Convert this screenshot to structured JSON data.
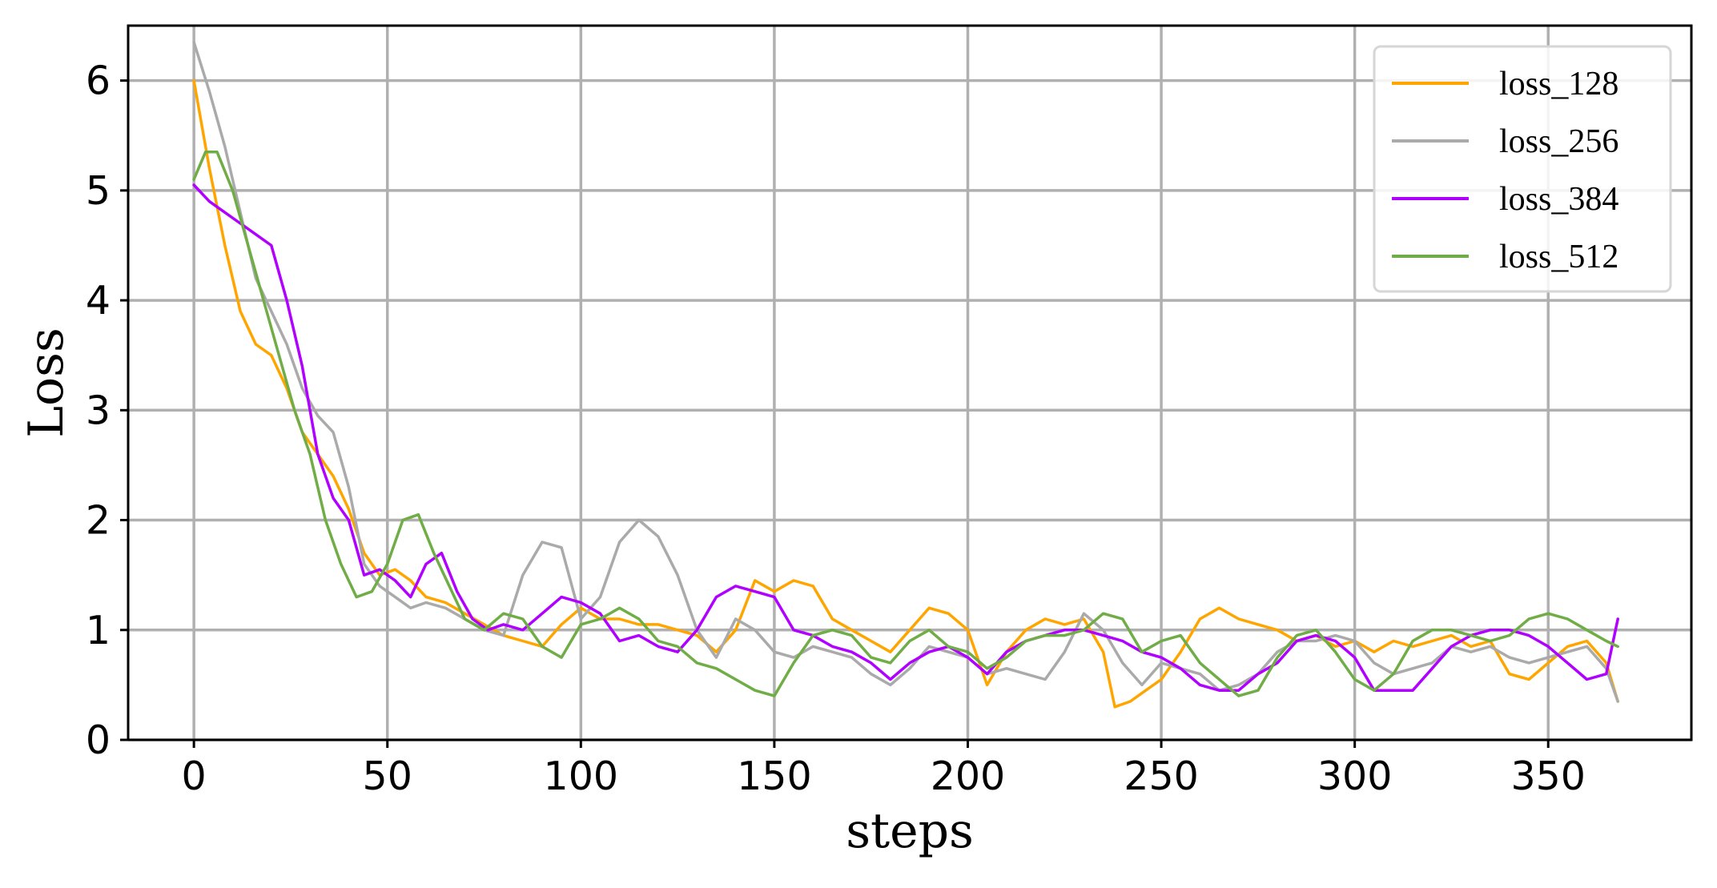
{
  "chart_data": {
    "type": "line",
    "title": "",
    "xlabel": "steps",
    "ylabel": "Loss",
    "xlim": [
      -17,
      387
    ],
    "ylim": [
      0,
      6.5
    ],
    "xticks": [
      0,
      50,
      100,
      150,
      200,
      250,
      300,
      350
    ],
    "yticks": [
      0,
      1,
      2,
      3,
      4,
      5,
      6
    ],
    "grid": true,
    "legend_position": "top-right",
    "series": [
      {
        "name": "loss_128",
        "color": "#FFA500",
        "points": [
          [
            0,
            6.0
          ],
          [
            4,
            5.2
          ],
          [
            8,
            4.5
          ],
          [
            12,
            3.9
          ],
          [
            16,
            3.6
          ],
          [
            20,
            3.5
          ],
          [
            24,
            3.2
          ],
          [
            28,
            2.8
          ],
          [
            32,
            2.6
          ],
          [
            36,
            2.4
          ],
          [
            40,
            2.1
          ],
          [
            44,
            1.7
          ],
          [
            48,
            1.5
          ],
          [
            52,
            1.55
          ],
          [
            56,
            1.45
          ],
          [
            60,
            1.3
          ],
          [
            65,
            1.25
          ],
          [
            70,
            1.15
          ],
          [
            75,
            1.05
          ],
          [
            80,
            0.95
          ],
          [
            85,
            0.9
          ],
          [
            90,
            0.85
          ],
          [
            95,
            1.05
          ],
          [
            100,
            1.2
          ],
          [
            105,
            1.1
          ],
          [
            110,
            1.1
          ],
          [
            115,
            1.05
          ],
          [
            120,
            1.05
          ],
          [
            125,
            1.0
          ],
          [
            130,
            0.95
          ],
          [
            135,
            0.8
          ],
          [
            140,
            1.0
          ],
          [
            145,
            1.45
          ],
          [
            150,
            1.35
          ],
          [
            155,
            1.45
          ],
          [
            160,
            1.4
          ],
          [
            165,
            1.1
          ],
          [
            170,
            1.0
          ],
          [
            175,
            0.9
          ],
          [
            180,
            0.8
          ],
          [
            185,
            1.0
          ],
          [
            190,
            1.2
          ],
          [
            195,
            1.15
          ],
          [
            200,
            1.0
          ],
          [
            205,
            0.5
          ],
          [
            210,
            0.8
          ],
          [
            215,
            1.0
          ],
          [
            220,
            1.1
          ],
          [
            225,
            1.05
          ],
          [
            230,
            1.1
          ],
          [
            235,
            0.8
          ],
          [
            238,
            0.3
          ],
          [
            242,
            0.35
          ],
          [
            246,
            0.45
          ],
          [
            250,
            0.55
          ],
          [
            255,
            0.8
          ],
          [
            260,
            1.1
          ],
          [
            265,
            1.2
          ],
          [
            270,
            1.1
          ],
          [
            275,
            1.05
          ],
          [
            280,
            1.0
          ],
          [
            285,
            0.9
          ],
          [
            290,
            0.95
          ],
          [
            295,
            0.85
          ],
          [
            300,
            0.9
          ],
          [
            305,
            0.8
          ],
          [
            310,
            0.9
          ],
          [
            315,
            0.85
          ],
          [
            320,
            0.9
          ],
          [
            325,
            0.95
          ],
          [
            330,
            0.85
          ],
          [
            335,
            0.9
          ],
          [
            340,
            0.6
          ],
          [
            345,
            0.55
          ],
          [
            350,
            0.7
          ],
          [
            355,
            0.85
          ],
          [
            360,
            0.9
          ],
          [
            365,
            0.7
          ],
          [
            368,
            0.35
          ]
        ]
      },
      {
        "name": "loss_256",
        "color": "#AAAAAA",
        "points": [
          [
            0,
            6.35
          ],
          [
            4,
            5.9
          ],
          [
            8,
            5.4
          ],
          [
            12,
            4.8
          ],
          [
            16,
            4.2
          ],
          [
            20,
            3.9
          ],
          [
            24,
            3.6
          ],
          [
            28,
            3.2
          ],
          [
            32,
            2.95
          ],
          [
            36,
            2.8
          ],
          [
            40,
            2.3
          ],
          [
            44,
            1.6
          ],
          [
            48,
            1.4
          ],
          [
            52,
            1.3
          ],
          [
            56,
            1.2
          ],
          [
            60,
            1.25
          ],
          [
            65,
            1.2
          ],
          [
            70,
            1.1
          ],
          [
            75,
            1.0
          ],
          [
            80,
            0.95
          ],
          [
            85,
            1.5
          ],
          [
            90,
            1.8
          ],
          [
            95,
            1.75
          ],
          [
            100,
            1.1
          ],
          [
            105,
            1.3
          ],
          [
            110,
            1.8
          ],
          [
            115,
            2.0
          ],
          [
            120,
            1.85
          ],
          [
            125,
            1.5
          ],
          [
            130,
            1.0
          ],
          [
            135,
            0.75
          ],
          [
            140,
            1.1
          ],
          [
            145,
            1.0
          ],
          [
            150,
            0.8
          ],
          [
            155,
            0.75
          ],
          [
            160,
            0.85
          ],
          [
            165,
            0.8
          ],
          [
            170,
            0.75
          ],
          [
            175,
            0.6
          ],
          [
            180,
            0.5
          ],
          [
            185,
            0.65
          ],
          [
            190,
            0.85
          ],
          [
            195,
            0.8
          ],
          [
            200,
            0.75
          ],
          [
            205,
            0.6
          ],
          [
            210,
            0.65
          ],
          [
            215,
            0.6
          ],
          [
            220,
            0.55
          ],
          [
            225,
            0.8
          ],
          [
            230,
            1.15
          ],
          [
            235,
            1.0
          ],
          [
            240,
            0.7
          ],
          [
            245,
            0.5
          ],
          [
            250,
            0.7
          ],
          [
            255,
            0.65
          ],
          [
            260,
            0.6
          ],
          [
            265,
            0.45
          ],
          [
            270,
            0.5
          ],
          [
            275,
            0.6
          ],
          [
            280,
            0.8
          ],
          [
            285,
            0.9
          ],
          [
            290,
            0.9
          ],
          [
            295,
            0.95
          ],
          [
            300,
            0.9
          ],
          [
            305,
            0.7
          ],
          [
            310,
            0.6
          ],
          [
            315,
            0.65
          ],
          [
            320,
            0.7
          ],
          [
            325,
            0.85
          ],
          [
            330,
            0.8
          ],
          [
            335,
            0.85
          ],
          [
            340,
            0.75
          ],
          [
            345,
            0.7
          ],
          [
            350,
            0.75
          ],
          [
            355,
            0.8
          ],
          [
            360,
            0.85
          ],
          [
            365,
            0.65
          ],
          [
            368,
            0.35
          ]
        ]
      },
      {
        "name": "loss_384",
        "color": "#B000FF",
        "points": [
          [
            0,
            5.05
          ],
          [
            4,
            4.9
          ],
          [
            8,
            4.8
          ],
          [
            12,
            4.7
          ],
          [
            16,
            4.6
          ],
          [
            20,
            4.5
          ],
          [
            24,
            4.0
          ],
          [
            28,
            3.4
          ],
          [
            32,
            2.6
          ],
          [
            36,
            2.2
          ],
          [
            40,
            2.0
          ],
          [
            44,
            1.5
          ],
          [
            48,
            1.55
          ],
          [
            52,
            1.45
          ],
          [
            56,
            1.3
          ],
          [
            60,
            1.6
          ],
          [
            64,
            1.7
          ],
          [
            68,
            1.35
          ],
          [
            72,
            1.1
          ],
          [
            76,
            1.0
          ],
          [
            80,
            1.05
          ],
          [
            85,
            1.0
          ],
          [
            90,
            1.15
          ],
          [
            95,
            1.3
          ],
          [
            100,
            1.25
          ],
          [
            105,
            1.15
          ],
          [
            110,
            0.9
          ],
          [
            115,
            0.95
          ],
          [
            120,
            0.85
          ],
          [
            125,
            0.8
          ],
          [
            130,
            1.0
          ],
          [
            135,
            1.3
          ],
          [
            140,
            1.4
          ],
          [
            145,
            1.35
          ],
          [
            150,
            1.3
          ],
          [
            155,
            1.0
          ],
          [
            160,
            0.95
          ],
          [
            165,
            0.85
          ],
          [
            170,
            0.8
          ],
          [
            175,
            0.7
          ],
          [
            180,
            0.55
          ],
          [
            185,
            0.7
          ],
          [
            190,
            0.8
          ],
          [
            195,
            0.85
          ],
          [
            200,
            0.75
          ],
          [
            205,
            0.6
          ],
          [
            210,
            0.8
          ],
          [
            215,
            0.9
          ],
          [
            220,
            0.95
          ],
          [
            225,
            1.0
          ],
          [
            230,
            1.0
          ],
          [
            235,
            0.95
          ],
          [
            240,
            0.9
          ],
          [
            245,
            0.8
          ],
          [
            250,
            0.75
          ],
          [
            255,
            0.65
          ],
          [
            260,
            0.5
          ],
          [
            265,
            0.45
          ],
          [
            270,
            0.45
          ],
          [
            275,
            0.6
          ],
          [
            280,
            0.7
          ],
          [
            285,
            0.9
          ],
          [
            290,
            0.95
          ],
          [
            295,
            0.9
          ],
          [
            300,
            0.75
          ],
          [
            305,
            0.45
          ],
          [
            310,
            0.45
          ],
          [
            315,
            0.45
          ],
          [
            320,
            0.65
          ],
          [
            325,
            0.85
          ],
          [
            330,
            0.95
          ],
          [
            335,
            1.0
          ],
          [
            340,
            1.0
          ],
          [
            345,
            0.95
          ],
          [
            350,
            0.85
          ],
          [
            355,
            0.7
          ],
          [
            360,
            0.55
          ],
          [
            365,
            0.6
          ],
          [
            368,
            1.1
          ]
        ]
      },
      {
        "name": "loss_512",
        "color": "#70AD47",
        "points": [
          [
            0,
            5.1
          ],
          [
            3,
            5.35
          ],
          [
            6,
            5.35
          ],
          [
            10,
            5.0
          ],
          [
            14,
            4.5
          ],
          [
            18,
            4.0
          ],
          [
            22,
            3.5
          ],
          [
            26,
            3.0
          ],
          [
            30,
            2.6
          ],
          [
            34,
            2.0
          ],
          [
            38,
            1.6
          ],
          [
            42,
            1.3
          ],
          [
            46,
            1.35
          ],
          [
            50,
            1.6
          ],
          [
            54,
            2.0
          ],
          [
            58,
            2.05
          ],
          [
            62,
            1.7
          ],
          [
            66,
            1.4
          ],
          [
            70,
            1.1
          ],
          [
            75,
            1.0
          ],
          [
            80,
            1.15
          ],
          [
            85,
            1.1
          ],
          [
            90,
            0.85
          ],
          [
            95,
            0.75
          ],
          [
            100,
            1.05
          ],
          [
            105,
            1.1
          ],
          [
            110,
            1.2
          ],
          [
            115,
            1.1
          ],
          [
            120,
            0.9
          ],
          [
            125,
            0.85
          ],
          [
            130,
            0.7
          ],
          [
            135,
            0.65
          ],
          [
            140,
            0.55
          ],
          [
            145,
            0.45
          ],
          [
            150,
            0.4
          ],
          [
            155,
            0.7
          ],
          [
            160,
            0.95
          ],
          [
            165,
            1.0
          ],
          [
            170,
            0.95
          ],
          [
            175,
            0.75
          ],
          [
            180,
            0.7
          ],
          [
            185,
            0.9
          ],
          [
            190,
            1.0
          ],
          [
            195,
            0.85
          ],
          [
            200,
            0.8
          ],
          [
            205,
            0.65
          ],
          [
            210,
            0.75
          ],
          [
            215,
            0.9
          ],
          [
            220,
            0.95
          ],
          [
            225,
            0.95
          ],
          [
            230,
            1.0
          ],
          [
            235,
            1.15
          ],
          [
            240,
            1.1
          ],
          [
            245,
            0.8
          ],
          [
            250,
            0.9
          ],
          [
            255,
            0.95
          ],
          [
            260,
            0.7
          ],
          [
            265,
            0.55
          ],
          [
            270,
            0.4
          ],
          [
            275,
            0.45
          ],
          [
            280,
            0.75
          ],
          [
            285,
            0.95
          ],
          [
            290,
            1.0
          ],
          [
            295,
            0.8
          ],
          [
            300,
            0.55
          ],
          [
            305,
            0.45
          ],
          [
            310,
            0.6
          ],
          [
            315,
            0.9
          ],
          [
            320,
            1.0
          ],
          [
            325,
            1.0
          ],
          [
            330,
            0.95
          ],
          [
            335,
            0.9
          ],
          [
            340,
            0.95
          ],
          [
            345,
            1.1
          ],
          [
            350,
            1.15
          ],
          [
            355,
            1.1
          ],
          [
            360,
            1.0
          ],
          [
            365,
            0.9
          ],
          [
            368,
            0.85
          ]
        ]
      }
    ]
  }
}
